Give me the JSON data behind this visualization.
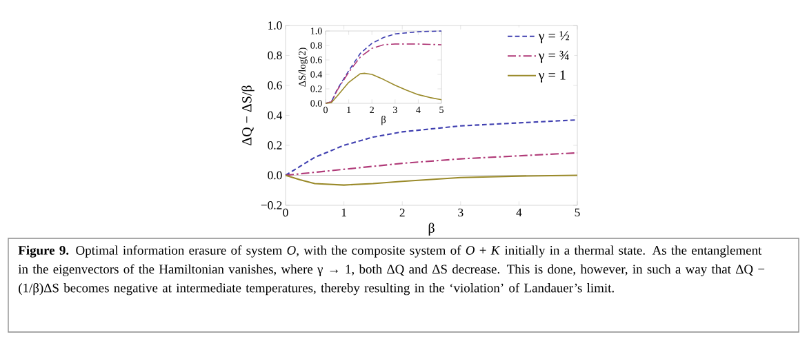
{
  "chart_data": [
    {
      "type": "line",
      "xlabel": "β",
      "ylabel": "ΔQ − ΔS/β",
      "annotations": [
        "**Figure 9.** Optimal information erasure of system *O*, with the composite system of *O* + *K* initially in a thermal state. As the entanglement in the eigenvectors of the Hamiltonian vanishes, where γ → 1, both ΔQ and ΔS decrease. This is done, however, in such a way that ΔQ − (1/β)ΔS becomes negative at intermediate temperatures, thereby resulting in the ‘violation’ of Landauer’s limit."
      ],
      "xlim": [
        0,
        5
      ],
      "ylim": [
        -0.2,
        1.0
      ],
      "xticks": [
        0,
        1,
        2,
        3,
        4,
        5
      ],
      "yticks": [
        {
          "value": -0.2,
          "label": "−0.2"
        },
        {
          "value": 0,
          "label": "0.0"
        },
        {
          "value": 0.2,
          "label": "0.2"
        },
        {
          "value": 0.4,
          "label": "0.4"
        },
        {
          "value": 0.6,
          "label": "0.6"
        },
        {
          "value": 0.8,
          "label": "0.8"
        },
        {
          "value": 1.0,
          "label": "1.0"
        }
      ],
      "legend": "top right",
      "ref_lines": [
        {
          "axis": "y",
          "value": 0,
          "color": "#cccccc"
        }
      ],
      "x": [
        0,
        0.25,
        0.5,
        1,
        1.5,
        2,
        3,
        4,
        5
      ],
      "series": [
        {
          "name": "γ = ½",
          "color": "#3f3fb0",
          "line_style": "dashed",
          "values": [
            0,
            0.06,
            0.12,
            0.2,
            0.255,
            0.29,
            0.33,
            0.35,
            0.37
          ]
        },
        {
          "name": "γ = ¾",
          "color": "#b03a78",
          "line_style": "dashdot",
          "values": [
            0,
            0.01,
            0.02,
            0.04,
            0.06,
            0.08,
            0.11,
            0.13,
            0.15
          ]
        },
        {
          "name": "γ = 1",
          "color": "#9a8a2a",
          "line_style": "solid",
          "values": [
            0,
            -0.03,
            -0.055,
            -0.065,
            -0.055,
            -0.04,
            -0.015,
            -0.005,
            0
          ]
        }
      ]
    },
    {
      "type": "line",
      "xlabel": "β",
      "ylabel": "ΔS/log(2)",
      "xlim": [
        0,
        5
      ],
      "ylim": [
        0,
        1.0
      ],
      "xticks": [
        0,
        1,
        2,
        3,
        4,
        5
      ],
      "yticks": [
        {
          "value": 0,
          "label": "0.0"
        },
        {
          "value": 0.2,
          "label": "0.2"
        },
        {
          "value": 0.4,
          "label": "0.4"
        },
        {
          "value": 0.6,
          "label": "0.6"
        },
        {
          "value": 0.8,
          "label": "0.8"
        },
        {
          "value": 1.0,
          "label": "1.0"
        }
      ],
      "series": [
        {
          "color": "#3f3fb0",
          "line_style": "dashed",
          "x": [
            0,
            0.25,
            0.5,
            1,
            1.5,
            2,
            2.5,
            3,
            4,
            5
          ],
          "values": [
            0,
            0.02,
            0.19,
            0.45,
            0.69,
            0.83,
            0.91,
            0.96,
            0.99,
            1.0
          ]
        },
        {
          "color": "#b03a78",
          "line_style": "dashdot",
          "x": [
            0,
            0.25,
            0.5,
            1,
            1.5,
            2,
            2.5,
            3,
            4,
            5
          ],
          "values": [
            0,
            0.02,
            0.18,
            0.43,
            0.64,
            0.76,
            0.81,
            0.82,
            0.82,
            0.81
          ]
        },
        {
          "color": "#9a8a2a",
          "line_style": "solid",
          "x": [
            0,
            0.25,
            0.5,
            1,
            1.5,
            1.7,
            2,
            2.5,
            3,
            3.5,
            4,
            4.5,
            5
          ],
          "values": [
            0,
            0.01,
            0.1,
            0.29,
            0.41,
            0.415,
            0.4,
            0.33,
            0.25,
            0.18,
            0.12,
            0.08,
            0.05
          ]
        }
      ]
    }
  ]
}
